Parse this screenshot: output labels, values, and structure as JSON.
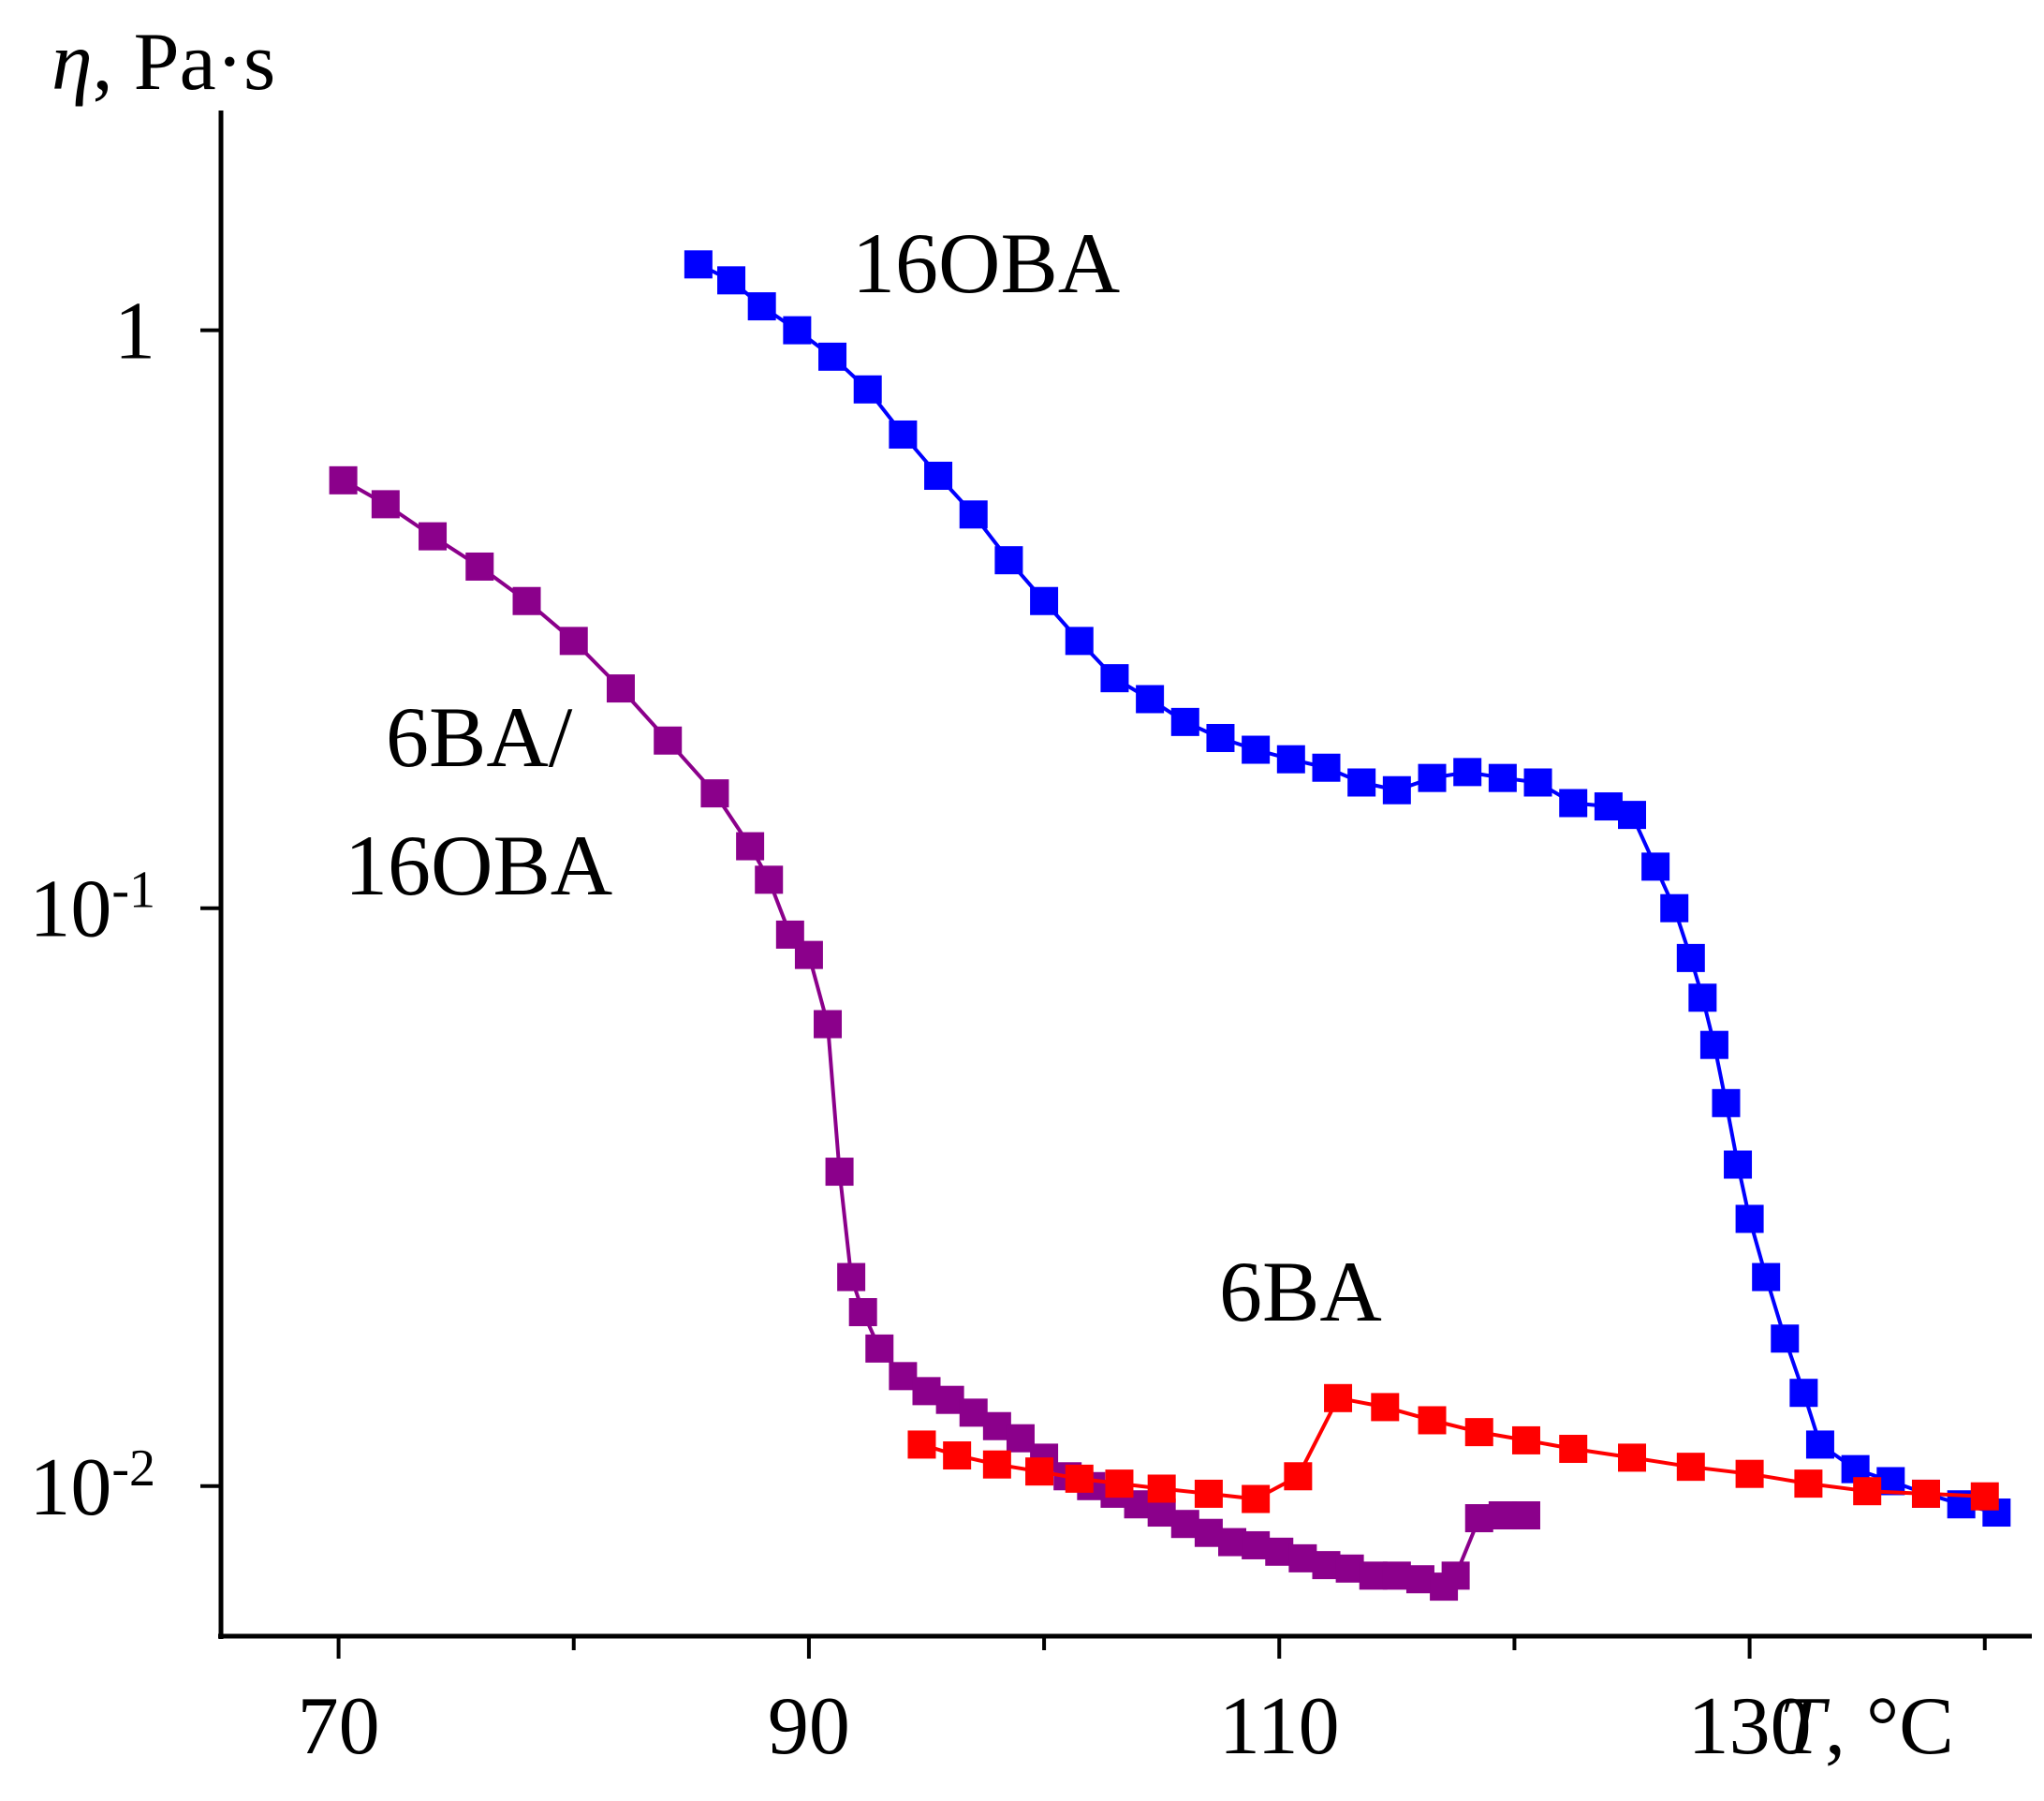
{
  "chart_data": {
    "type": "scatter",
    "yscale": "log",
    "xlim": [
      65,
      142
    ],
    "ylim": [
      0.0055,
      2.4
    ],
    "xlabel": {
      "symbol": "T",
      "unit": ", °C"
    },
    "ylabel": {
      "symbol": "η",
      "unit": ", Pa·s"
    },
    "xticks": [
      {
        "value": 70,
        "label": "70"
      },
      {
        "value": 90,
        "label": "90"
      },
      {
        "value": 110,
        "label": "110"
      },
      {
        "value": 130,
        "label": "130"
      }
    ],
    "yticks": [
      {
        "value": 1,
        "base": "1",
        "exp": ""
      },
      {
        "value": 0.1,
        "base": "10",
        "exp": "-1"
      },
      {
        "value": 0.01,
        "base": "10",
        "exp": "-2"
      }
    ],
    "series": [
      {
        "name": "16OBA",
        "label_lines": [
          "16OBA"
        ],
        "color": "#0000ff",
        "x": [
          85.3,
          86.7,
          88.0,
          89.5,
          91.0,
          92.5,
          94.0,
          95.5,
          97.0,
          98.5,
          100.0,
          101.5,
          103.0,
          104.5,
          106.0,
          107.5,
          109.0,
          110.5,
          112.0,
          113.5,
          115.0,
          116.5,
          118.0,
          119.5,
          121.0,
          122.5,
          124.0,
          125.0,
          126.0,
          126.8,
          127.5,
          128.0,
          128.5,
          129.0,
          129.5,
          130.0,
          130.7,
          131.5,
          132.3,
          133.0,
          134.5,
          136.0,
          137.5,
          139.0,
          140.5
        ],
        "y": [
          1.3,
          1.22,
          1.1,
          1.0,
          0.9,
          0.79,
          0.66,
          0.56,
          0.48,
          0.4,
          0.34,
          0.29,
          0.25,
          0.23,
          0.21,
          0.197,
          0.188,
          0.181,
          0.175,
          0.165,
          0.16,
          0.168,
          0.172,
          0.168,
          0.165,
          0.152,
          0.15,
          0.145,
          0.118,
          0.1,
          0.082,
          0.07,
          0.058,
          0.046,
          0.036,
          0.029,
          0.023,
          0.018,
          0.0145,
          0.0118,
          0.0107,
          0.0102,
          0.0097,
          0.0093,
          0.009
        ]
      },
      {
        "name": "6BA/16OBA",
        "label_lines": [
          "6BA/",
          "16OBA"
        ],
        "color": "#8b008b",
        "x": [
          70.2,
          72.0,
          74.0,
          76.0,
          78.0,
          80.0,
          82.0,
          84.0,
          86.0,
          87.5,
          88.3,
          89.2,
          90.0,
          90.8,
          91.3,
          91.8,
          92.3,
          93.0,
          94.0,
          95.0,
          96.0,
          97.0,
          98.0,
          99.0,
          100.0,
          101.0,
          102.0,
          103.0,
          104.0,
          105.0,
          106.0,
          107.0,
          108.0,
          109.0,
          110.0,
          111.0,
          112.0,
          113.0,
          114.0,
          115.0,
          116.0,
          117.0,
          117.5,
          118.5,
          119.5,
          120.5
        ],
        "y": [
          0.55,
          0.5,
          0.44,
          0.39,
          0.34,
          0.29,
          0.24,
          0.195,
          0.158,
          0.128,
          0.112,
          0.09,
          0.083,
          0.063,
          0.035,
          0.023,
          0.02,
          0.0173,
          0.0155,
          0.0146,
          0.0141,
          0.0134,
          0.0127,
          0.0121,
          0.0112,
          0.0104,
          0.01,
          0.0097,
          0.0093,
          0.009,
          0.0086,
          0.0083,
          0.008,
          0.0079,
          0.0077,
          0.0075,
          0.0073,
          0.0072,
          0.007,
          0.007,
          0.0069,
          0.0067,
          0.007,
          0.0088,
          0.0089,
          0.0089
        ]
      },
      {
        "name": "6BA",
        "label_lines": [
          "6BA"
        ],
        "color": "#ff0000",
        "x": [
          94.8,
          96.3,
          98.0,
          99.8,
          101.5,
          103.2,
          105.0,
          107.0,
          109.0,
          110.8,
          112.5,
          114.5,
          116.5,
          118.5,
          120.5,
          122.5,
          125.0,
          127.5,
          130.0,
          132.5,
          135.0,
          137.5,
          140.0
        ],
        "y": [
          0.0118,
          0.0113,
          0.0109,
          0.0106,
          0.0103,
          0.0101,
          0.0099,
          0.0097,
          0.0095,
          0.0104,
          0.0142,
          0.0137,
          0.013,
          0.0124,
          0.012,
          0.0116,
          0.0112,
          0.0108,
          0.0105,
          0.0101,
          0.0098,
          0.0097,
          0.0096
        ]
      }
    ]
  }
}
